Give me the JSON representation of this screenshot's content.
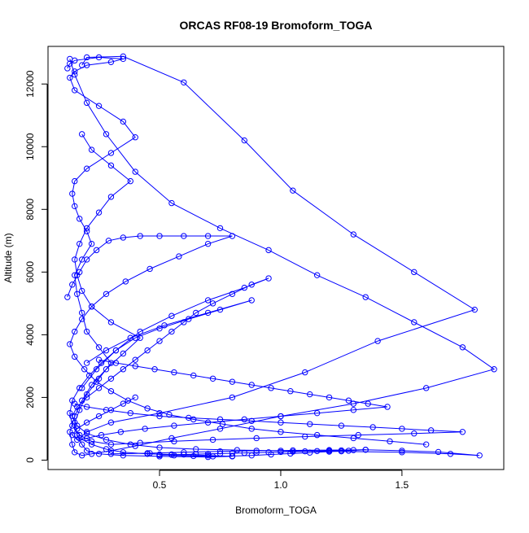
{
  "chart_data": {
    "type": "scatter",
    "title": "ORCAS RF08-19 Bromoform_TOGA",
    "xlabel": "Bromoform_TOGA",
    "ylabel": "Altitude (m)",
    "xlim": [
      0.04,
      1.92
    ],
    "ylim": [
      -300,
      13200
    ],
    "x_ticks": [
      0.5,
      1.0,
      1.5
    ],
    "x_tick_labels": [
      "0.5",
      "1.0",
      "1.5"
    ],
    "y_ticks": [
      0,
      2000,
      4000,
      6000,
      8000,
      10000,
      12000
    ],
    "y_tick_labels": [
      "0",
      "2000",
      "4000",
      "6000",
      "8000",
      "10000",
      "12000"
    ],
    "grid": false,
    "legend": "none",
    "marker": "open-circle",
    "connected": true,
    "color": "#0000ff",
    "series": [
      {
        "x": [
          0.18,
          0.2,
          0.35,
          0.6,
          0.85,
          1.05,
          1.3,
          1.55,
          1.8,
          1.4,
          1.1,
          0.8,
          0.5,
          0.3,
          0.2,
          0.17,
          0.22,
          0.28,
          0.35,
          0.45,
          0.55,
          0.7,
          0.8,
          0.7,
          0.5,
          0.35,
          0.25,
          0.2,
          0.18,
          0.16,
          0.15,
          0.17,
          0.2,
          0.25,
          0.3,
          0.25,
          0.2,
          0.18,
          0.16,
          0.15,
          0.18,
          0.22,
          0.2,
          0.17,
          0.15,
          0.14,
          0.15,
          0.2,
          0.3,
          0.4,
          0.35,
          0.25,
          0.15,
          0.13,
          0.15,
          0.2,
          0.3,
          0.35,
          0.25,
          0.15,
          0.13,
          0.12
        ],
        "y": [
          12600,
          12850,
          12880,
          12050,
          10200,
          8600,
          7200,
          6000,
          4800,
          3800,
          2800,
          2000,
          1500,
          1200,
          900,
          700,
          500,
          350,
          250,
          200,
          180,
          150,
          120,
          100,
          120,
          150,
          200,
          300,
          500,
          800,
          1200,
          1600,
          2100,
          2600,
          3100,
          3600,
          4100,
          4700,
          5300,
          5900,
          6400,
          6900,
          7300,
          7700,
          8100,
          8500,
          8900,
          9300,
          9800,
          10300,
          10800,
          11300,
          11800,
          12200,
          12400,
          12600,
          12700,
          12800,
          12850,
          12750,
          12650,
          12500
        ]
      },
      {
        "x": [
          0.13,
          0.15,
          0.2,
          0.28,
          0.4,
          0.55,
          0.75,
          0.95,
          1.15,
          1.35,
          1.55,
          1.75,
          1.88,
          1.6,
          1.3,
          1.0,
          0.75,
          0.55,
          0.4,
          0.3,
          0.22,
          0.18,
          0.15,
          0.14,
          0.13,
          0.15,
          0.18,
          0.22,
          0.28,
          0.35,
          0.42,
          0.3,
          0.22,
          0.18,
          0.16,
          0.15,
          0.17,
          0.2,
          0.25,
          0.3,
          0.38,
          0.3,
          0.22,
          0.18
        ],
        "y": [
          12800,
          12300,
          11400,
          10400,
          9200,
          8200,
          7400,
          6700,
          5900,
          5200,
          4400,
          3600,
          2900,
          2300,
          1800,
          1400,
          1000,
          700,
          450,
          300,
          200,
          150,
          250,
          500,
          900,
          1400,
          1900,
          2400,
          2900,
          3400,
          3900,
          4400,
          4900,
          5400,
          5900,
          6400,
          6900,
          7400,
          7900,
          8400,
          8900,
          9400,
          9900,
          10400
        ]
      },
      {
        "x": [
          0.3,
          0.45,
          0.6,
          0.75,
          0.9,
          1.05,
          1.2,
          1.35,
          1.5,
          1.65,
          1.82,
          1.7,
          1.5,
          1.25,
          1.0,
          0.82,
          0.65,
          0.5,
          0.38,
          0.28,
          0.2,
          0.16,
          0.14,
          0.16,
          0.2,
          0.25,
          0.3,
          0.35,
          0.4,
          0.45,
          0.5,
          0.55,
          0.6,
          0.65,
          0.72,
          0.8,
          0.88,
          0.95,
          0.85,
          0.7,
          0.55,
          0.42,
          0.32,
          0.24,
          0.18
        ],
        "y": [
          200,
          220,
          250,
          280,
          300,
          310,
          320,
          330,
          300,
          260,
          150,
          200,
          250,
          280,
          300,
          320,
          350,
          400,
          500,
          650,
          850,
          1100,
          1400,
          1700,
          2000,
          2300,
          2600,
          2900,
          3200,
          3500,
          3800,
          4100,
          4400,
          4700,
          5000,
          5300,
          5600,
          5800,
          5500,
          5100,
          4600,
          4100,
          3500,
          2900,
          2300
        ]
      },
      {
        "x": [
          0.15,
          0.2,
          0.28,
          0.38,
          0.5,
          0.62,
          0.75,
          0.88,
          1.0,
          1.12,
          1.25,
          1.38,
          1.5,
          1.62,
          1.75,
          1.55,
          1.32,
          1.1,
          0.9,
          0.72,
          0.56,
          0.42,
          0.3,
          0.22,
          0.17,
          0.14,
          0.13,
          0.14,
          0.17,
          0.21,
          0.26,
          0.32,
          0.4,
          0.5,
          0.62,
          0.75,
          0.88,
          0.7,
          0.52,
          0.38,
          0.28,
          0.2
        ],
        "y": [
          1800,
          1700,
          1600,
          1500,
          1400,
          1350,
          1300,
          1250,
          1200,
          1150,
          1100,
          1050,
          1000,
          950,
          900,
          850,
          800,
          750,
          700,
          650,
          600,
          550,
          500,
          600,
          800,
          1100,
          1500,
          1900,
          2300,
          2700,
          3100,
          3500,
          3900,
          4200,
          4500,
          4800,
          5100,
          4700,
          4300,
          3900,
          3500,
          3100
        ]
      },
      {
        "x": [
          0.12,
          0.14,
          0.17,
          0.2,
          0.24,
          0.29,
          0.35,
          0.42,
          0.5,
          0.6,
          0.7,
          0.8,
          0.7,
          0.58,
          0.46,
          0.36,
          0.28,
          0.22,
          0.18,
          0.15,
          0.13,
          0.15,
          0.19,
          0.24,
          0.3,
          0.37,
          0.45,
          0.54,
          0.64,
          0.76,
          0.88,
          1.0,
          1.15,
          1.3,
          1.45,
          1.6
        ],
        "y": [
          5200,
          5600,
          6000,
          6400,
          6700,
          7000,
          7100,
          7150,
          7150,
          7150,
          7150,
          7150,
          6900,
          6500,
          6100,
          5700,
          5300,
          4900,
          4500,
          4100,
          3700,
          3300,
          2900,
          2500,
          2200,
          1900,
          1650,
          1450,
          1300,
          1150,
          1000,
          900,
          800,
          700,
          600,
          500
        ]
      },
      {
        "x": [
          0.25,
          0.32,
          0.4,
          0.48,
          0.56,
          0.64,
          0.72,
          0.8,
          0.88,
          0.96,
          1.04,
          1.12,
          1.2,
          1.28,
          1.36,
          1.44,
          1.3,
          1.15,
          1.0,
          0.85,
          0.7,
          0.56,
          0.44,
          0.34,
          0.26,
          0.2,
          0.16,
          0.14,
          0.16,
          0.2,
          0.25,
          0.3,
          0.35,
          0.4
        ],
        "y": [
          3200,
          3100,
          3000,
          2900,
          2800,
          2700,
          2600,
          2500,
          2400,
          2300,
          2200,
          2100,
          2000,
          1900,
          1800,
          1700,
          1600,
          1500,
          1400,
          1300,
          1200,
          1100,
          1000,
          900,
          800,
          700,
          650,
          800,
          1000,
          1200,
          1400,
          1600,
          1800,
          2000
        ]
      },
      {
        "x": [
          0.5,
          0.55,
          0.6,
          0.65,
          0.7,
          0.75,
          0.8,
          0.85,
          0.9,
          0.95,
          1.0,
          1.05,
          1.1,
          1.15,
          1.2,
          1.25,
          1.3,
          1.35,
          1.28,
          1.2,
          1.12,
          1.04,
          0.96,
          0.88,
          0.8,
          0.72,
          0.64,
          0.56,
          0.5,
          0.46
        ],
        "y": [
          160,
          170,
          180,
          190,
          200,
          210,
          220,
          230,
          240,
          250,
          260,
          270,
          280,
          290,
          300,
          310,
          320,
          330,
          300,
          270,
          240,
          210,
          180,
          150,
          130,
          120,
          130,
          150,
          180,
          220
        ]
      }
    ]
  }
}
